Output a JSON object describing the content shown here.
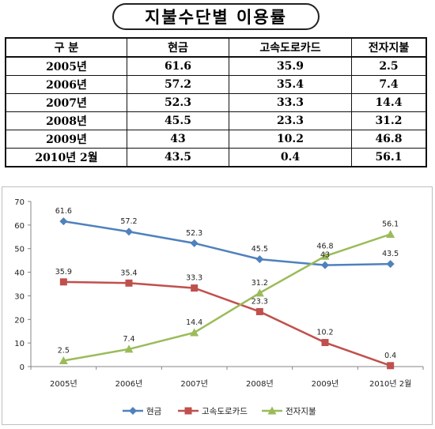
{
  "page_title": "지불수단별 이용률",
  "table": {
    "headers": [
      "구 분",
      "현금",
      "고속도로카드",
      "전자지불"
    ],
    "rows": [
      [
        "2005년",
        "61.6",
        "35.9",
        "2.5"
      ],
      [
        "2006년",
        "57.2",
        "35.4",
        "7.4"
      ],
      [
        "2007년",
        "52.3",
        "33.3",
        "14.4"
      ],
      [
        "2008년",
        "45.5",
        "23.3",
        "31.2"
      ],
      [
        "2009년",
        "43",
        "10.2",
        "46.8"
      ],
      [
        "2010년 2월",
        "43.5",
        "0.4",
        "56.1"
      ]
    ]
  },
  "chart_data": {
    "type": "line",
    "categories": [
      "2005년",
      "2006년",
      "2007년",
      "2008년",
      "2009년",
      "2010년 2월"
    ],
    "series": [
      {
        "name": "현금",
        "values": [
          61.6,
          57.2,
          52.3,
          45.5,
          43,
          43.5
        ],
        "color": "#4F81BD",
        "marker": "diamond"
      },
      {
        "name": "고속도로카드",
        "values": [
          35.9,
          35.4,
          33.3,
          23.3,
          10.2,
          0.4
        ],
        "color": "#C0504D",
        "marker": "square"
      },
      {
        "name": "전자지불",
        "values": [
          2.5,
          7.4,
          14.4,
          31.2,
          46.8,
          56.1
        ],
        "color": "#9BBB59",
        "marker": "triangle"
      }
    ],
    "data_labels": [
      [
        "61.6",
        "57.2",
        "52.3",
        "45.5",
        "43",
        "43.5"
      ],
      [
        "35.9",
        "35.4",
        "33.3",
        "23.3",
        "10.2",
        "0.4"
      ],
      [
        "2.5",
        "7.4",
        "14.4",
        "31.2",
        "46.8",
        "56.1"
      ]
    ],
    "ylim": [
      0,
      70
    ],
    "yticks": [
      "0",
      "10",
      "20",
      "30",
      "40",
      "50",
      "60",
      "70"
    ],
    "grid": false,
    "legend": "bottom",
    "xlabel": "",
    "ylabel": ""
  }
}
